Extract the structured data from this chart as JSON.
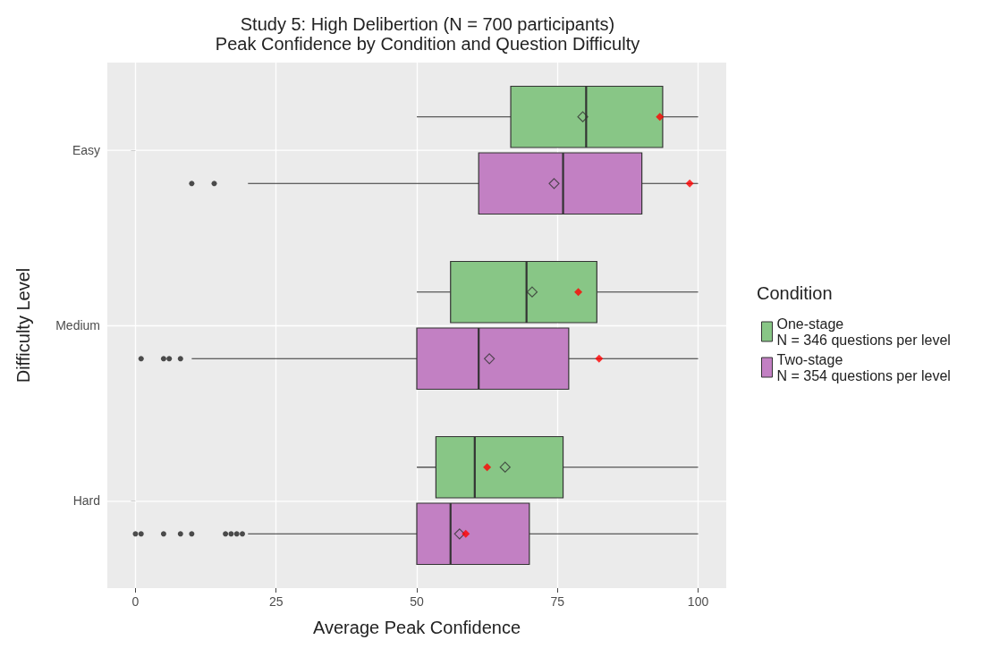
{
  "chart_data": {
    "type": "box",
    "title": "Study 5: High Delibertion (N = 700 participants)",
    "subtitle": "Peak Confidence by Condition and Question Difficulty",
    "xlabel": "Average Peak Confidence",
    "ylabel": "Difficulty Level",
    "legend_title": "Condition",
    "orientation": "horizontal",
    "categories": [
      "Easy",
      "Medium",
      "Hard"
    ],
    "xlim": [
      -5,
      105
    ],
    "xticks": [
      0,
      25,
      50,
      75,
      100
    ],
    "grid": true,
    "legend": "right",
    "series": [
      {
        "name": "One-stage\nN = 346 questions per level",
        "color": "#88c686",
        "boxes": [
          {
            "low": 50,
            "q1": 66.7,
            "median": 80.1,
            "q3": 93.7,
            "high": 100,
            "mean": 79.5
          },
          {
            "low": 50,
            "q1": 56,
            "median": 69.5,
            "q3": 82,
            "high": 100,
            "mean": 70.5
          },
          {
            "low": 50,
            "q1": 53.4,
            "median": 60.3,
            "q3": 76,
            "high": 100,
            "mean": 65.7
          }
        ]
      },
      {
        "name": "Two-stage\nN = 354 questions per level",
        "color": "#c280c3",
        "boxes": [
          {
            "low": 20,
            "q1": 61,
            "median": 76,
            "q3": 90,
            "high": 100,
            "mean": 74.4,
            "outliers": [
              10,
              14
            ]
          },
          {
            "low": 10,
            "q1": 50,
            "median": 61,
            "q3": 77,
            "high": 100,
            "mean": 62.9,
            "outliers": [
              1,
              5,
              6,
              8
            ]
          },
          {
            "low": 20,
            "q1": 50,
            "median": 56,
            "q3": 70,
            "high": 100,
            "mean": 57.6,
            "outliers": [
              0,
              1,
              5,
              8,
              10,
              16,
              17,
              18,
              19
            ]
          }
        ]
      },
      {
        "type": "scatter",
        "color": "#ff0000",
        "marker": "diamond",
        "x": [
          "Easy",
          "Medium",
          "Hard"
        ],
        "values": [
          93.2,
          78.7,
          62.5
        ]
      },
      {
        "type": "scatter",
        "color": "#ff0000",
        "marker": "diamond",
        "x": [
          "Easy",
          "Medium",
          "Hard"
        ],
        "values": [
          98.5,
          82.4,
          58.7
        ]
      }
    ]
  }
}
